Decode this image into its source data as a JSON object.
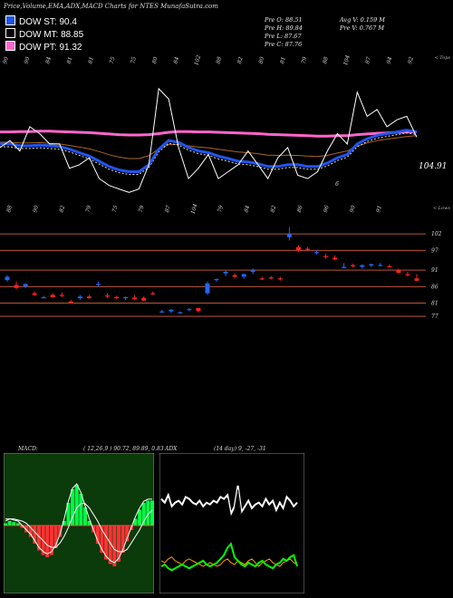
{
  "page_title": "Price,Volume,EMA,ADX,MACD Charts for NTES MunafaSutra.com",
  "legend": [
    {
      "label": "DOW ST: 90.4",
      "color": "#2255ee"
    },
    {
      "label": "DOW MT: 88.85",
      "color": "#000000"
    },
    {
      "label": "DOW PT: 91.32",
      "color": "#ff66cc"
    }
  ],
  "stats": {
    "open": "Pre O: 88.51",
    "high": "Pre H: 89.84",
    "low": "Pre L: 87.67",
    "close": "Pre C: 87.76",
    "avg_volume": "Avg V: 0.159 M",
    "prev_volume": "Pre V: 0.767 M"
  },
  "colors": {
    "up_candle": "#2266ff",
    "down_candle": "#ff2222",
    "price_line": "#ffffff",
    "ema_fast": "#2255ee",
    "ema_long": "#ff66cc",
    "ema_mid": "#aa6622",
    "level_line": "#bb5533",
    "macd_bg": "#0b3a0b",
    "macd_line": "#00ff00",
    "histogram_pos": "#00ff44",
    "histogram_neg": "#ff3333",
    "adx_orange": "#ff9900",
    "adx_green": "#00ff00"
  },
  "chart_data": [
    {
      "type": "line",
      "name": "price_ema",
      "top_axis_label": "< Tops",
      "low_axis_label": "< Lows",
      "right_label": "104.91",
      "mid_label": "6",
      "top_values": [
        "90",
        "90",
        "84",
        "81",
        "81",
        "75",
        "75",
        "80",
        "84",
        "102",
        "88",
        "82",
        "80",
        "81",
        "79",
        "88",
        "104",
        "87",
        "94",
        "92"
      ],
      "low_values": [
        "88",
        "90",
        "82",
        "79",
        "75",
        "79",
        "87",
        "104",
        "79",
        "84",
        "82",
        "86",
        "96",
        "90",
        "91"
      ],
      "price": [
        85,
        87,
        84,
        91,
        89,
        86,
        86,
        79,
        80,
        82,
        76,
        74,
        73,
        72,
        73,
        80,
        102,
        99,
        85,
        76,
        79,
        83,
        76,
        78,
        80,
        84,
        80,
        76,
        82,
        85,
        77,
        76,
        78,
        84,
        89,
        86,
        101,
        94,
        96,
        91,
        93,
        94,
        88
      ],
      "ema_fast": [
        86,
        86,
        85.5,
        85.5,
        85.7,
        85.5,
        85.3,
        84.5,
        83.5,
        82.5,
        81,
        79.5,
        78.5,
        78,
        78,
        80,
        84.5,
        87,
        86.5,
        85,
        84,
        83.5,
        82.5,
        81.8,
        81,
        80.8,
        80.3,
        79.5,
        79.5,
        80,
        80,
        79.5,
        79.5,
        80.5,
        82,
        83,
        86,
        87.5,
        88.5,
        89,
        89.5,
        90,
        89.5
      ],
      "ema_mid": [
        86.5,
        86.5,
        86.3,
        86.3,
        86.4,
        86.2,
        86,
        85.6,
        85.1,
        84.6,
        83.8,
        82.9,
        82.2,
        81.8,
        81.8,
        82.6,
        84.6,
        85.8,
        85.9,
        85.5,
        85.1,
        84.9,
        84.5,
        84.1,
        83.7,
        83.5,
        83.2,
        82.8,
        82.7,
        82.8,
        82.7,
        82.5,
        82.4,
        82.7,
        83.4,
        84,
        85.4,
        86.3,
        87,
        87.4,
        87.8,
        88.2,
        88.4
      ],
      "ema_long": [
        89.5,
        89.5,
        89.6,
        89.6,
        89.7,
        89.7,
        89.6,
        89.5,
        89.4,
        89.3,
        89.1,
        88.9,
        88.7,
        88.6,
        88.6,
        88.7,
        89,
        89.4,
        89.6,
        89.6,
        89.5,
        89.5,
        89.4,
        89.3,
        89.2,
        89.1,
        89,
        88.8,
        88.7,
        88.6,
        88.5,
        88.4,
        88.3,
        88.3,
        88.4,
        88.4,
        88.7,
        88.9,
        89.1,
        89.2,
        89.4,
        89.5,
        89.5
      ],
      "ylim": [
        70,
        108
      ]
    },
    {
      "type": "candlestick",
      "name": "price_candles",
      "level_labels": [
        "102",
        "97",
        "91",
        "86",
        "81",
        "77"
      ],
      "levels": [
        102,
        97,
        91,
        86,
        81,
        77
      ],
      "ohlc": [
        [
          88,
          89.5,
          87.5,
          89
        ],
        [
          86.5,
          87.5,
          85.2,
          85.6
        ],
        [
          86,
          87,
          85.5,
          86.8
        ],
        [
          84,
          84.5,
          83.2,
          83.5
        ],
        [
          82.8,
          83.2,
          82.5,
          82.8
        ],
        [
          83.5,
          84,
          82.6,
          82.8
        ],
        [
          83.5,
          84.2,
          82.8,
          83.4
        ],
        [
          81.5,
          82,
          81,
          81.2
        ],
        [
          82.5,
          83.5,
          82,
          83
        ],
        [
          83,
          83.5,
          82.3,
          82.5
        ],
        [
          86.5,
          87.5,
          86,
          86.8
        ],
        [
          83.3,
          84,
          82.5,
          83
        ],
        [
          82.8,
          83.2,
          82.3,
          82.6
        ],
        [
          82.5,
          83,
          82,
          82.8
        ],
        [
          82.7,
          83.5,
          82,
          82.2
        ],
        [
          82.6,
          83,
          81.5,
          81.8
        ],
        [
          84,
          84.5,
          83.5,
          83.8
        ],
        [
          78.5,
          79,
          78,
          78.5
        ],
        [
          78.5,
          79.2,
          78,
          79
        ],
        [
          78,
          78.5,
          77.8,
          78.2
        ],
        [
          79,
          79.5,
          78.5,
          79.2
        ],
        [
          79.5,
          79.5,
          78.2,
          78.6
        ],
        [
          84,
          87.5,
          83.5,
          87
        ],
        [
          88,
          88.5,
          87.5,
          88.3
        ],
        [
          90,
          91,
          89.2,
          90.5
        ],
        [
          89.5,
          90,
          88.5,
          89
        ],
        [
          89,
          90,
          88.5,
          89.8
        ],
        [
          90.5,
          91.5,
          89.8,
          91
        ],
        [
          88.5,
          89,
          88,
          88.4
        ],
        [
          88.8,
          89.2,
          88.2,
          88.5
        ],
        [
          88.5,
          89,
          87.8,
          88.2
        ],
        [
          101,
          104,
          100,
          102
        ],
        [
          98,
          98.5,
          96.5,
          97
        ],
        [
          97.5,
          98,
          96.8,
          97.2
        ],
        [
          96.5,
          97,
          95.8,
          96.5
        ],
        [
          95.3,
          96,
          94.5,
          95
        ],
        [
          94.8,
          95.5,
          94,
          94.3
        ],
        [
          92,
          93.2,
          91.5,
          92
        ],
        [
          92.5,
          93,
          91.8,
          92.2
        ],
        [
          92,
          92.8,
          91.5,
          92.5
        ],
        [
          92.4,
          93,
          92,
          92.8
        ],
        [
          92.6,
          93.2,
          92.2,
          92.6
        ],
        [
          92.2,
          92.8,
          91.8,
          92
        ],
        [
          91,
          91.5,
          90,
          90.2
        ],
        [
          89.8,
          90.5,
          89,
          89.5
        ],
        [
          88.5,
          89.8,
          87.6,
          87.8
        ]
      ],
      "ylim": [
        74,
        107
      ]
    },
    {
      "type": "line",
      "name": "macd",
      "label": "MACD:",
      "params": "( 12,26,9 ) 90.72, 89.89, 0.83",
      "macd": [
        0.1,
        0.2,
        0.15,
        0.1,
        -0.1,
        -0.3,
        -0.5,
        -0.8,
        -1.1,
        -1.3,
        -1.4,
        -1.3,
        -1.0,
        -0.5,
        0.2,
        1.0,
        1.6,
        1.8,
        1.4,
        0.8,
        0.2,
        -0.3,
        -0.8,
        -1.2,
        -1.5,
        -1.7,
        -1.8,
        -1.6,
        -1.2,
        -0.7,
        -0.2,
        0.3,
        0.7,
        1.0,
        1.1,
        1.1
      ],
      "signal": [
        0.2,
        0.2,
        0.2,
        0.15,
        0.1,
        0,
        -0.2,
        -0.4,
        -0.6,
        -0.8,
        -1.0,
        -1.1,
        -1.1,
        -0.9,
        -0.6,
        -0.2,
        0.3,
        0.7,
        0.9,
        0.9,
        0.7,
        0.4,
        0.1,
        -0.3,
        -0.6,
        -0.9,
        -1.2,
        -1.3,
        -1.3,
        -1.2,
        -0.9,
        -0.6,
        -0.3,
        0.1,
        0.4,
        0.6
      ],
      "ylim": [
        -3,
        3
      ]
    },
    {
      "type": "line",
      "name": "adx",
      "label": "ADX",
      "params": "(14 day) 9, -27, -31",
      "white": [
        48,
        46,
        50,
        44,
        46,
        47,
        45,
        49,
        48,
        46,
        45,
        47,
        44,
        46,
        45,
        47,
        46,
        49,
        48,
        50,
        40,
        44,
        55,
        41,
        44,
        47,
        43,
        45,
        46,
        44,
        48,
        45,
        47,
        42,
        46,
        43,
        49,
        47,
        44,
        46
      ],
      "orange": [
        15,
        14,
        16,
        17,
        15,
        14,
        13,
        15,
        16,
        15,
        14,
        13,
        12,
        13,
        14,
        13,
        12,
        13,
        15,
        16,
        14,
        13,
        15,
        14,
        13,
        15,
        16,
        14,
        12,
        14,
        15,
        16,
        14,
        13,
        12,
        14,
        15,
        16,
        14,
        13
      ],
      "green": [
        12,
        13,
        11,
        10,
        11,
        12,
        13,
        12,
        11,
        12,
        13,
        14,
        15,
        13,
        12,
        13,
        14,
        16,
        18,
        22,
        24,
        17,
        15,
        13,
        12,
        14,
        13,
        12,
        14,
        15,
        13,
        12,
        11,
        13,
        14,
        16,
        15,
        17,
        18,
        12
      ],
      "ylim": [
        0,
        70
      ]
    }
  ]
}
